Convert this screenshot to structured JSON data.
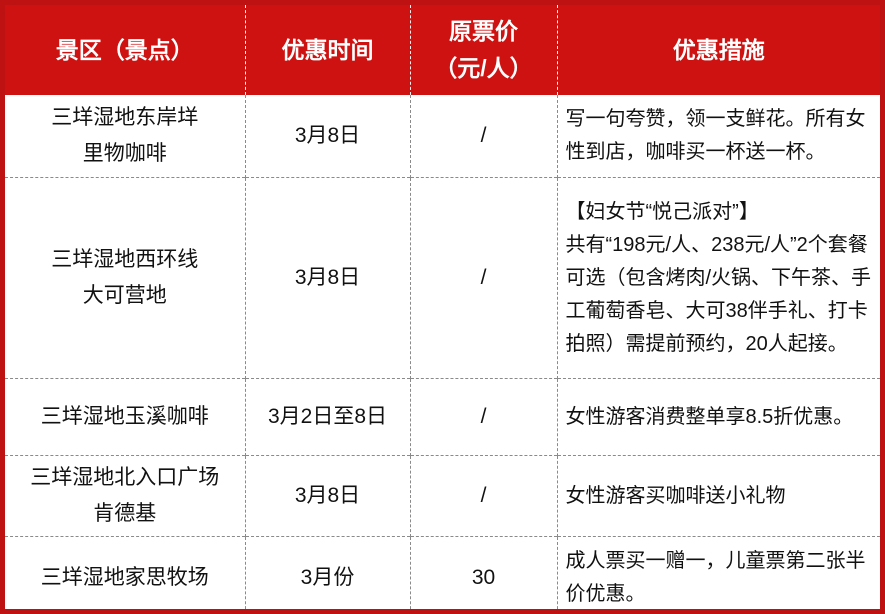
{
  "colors": {
    "header_bg": "#ce1212",
    "outer_border": "#be1111",
    "grid_line": "#8a8a8a",
    "header_text": "#ffffff",
    "body_text": "#111111"
  },
  "table": {
    "headers": {
      "spot": "景区（景点）",
      "time": "优惠时间",
      "price": "原票价\n（元/人）",
      "measure": "优惠措施"
    },
    "rows": [
      {
        "spot": "三垟湿地东岸垟\n里物咖啡",
        "time": "3月8日",
        "price": "/",
        "measure": "写一句夸赞，领一支鲜花。所有女性到店，咖啡买一杯送一杯。"
      },
      {
        "spot": "三垟湿地西环线\n大可营地",
        "time": "3月8日",
        "price": "/",
        "measure": "【妇女节“悦己派对”】\n共有“198元/人、238元/人”2个套餐可选（包含烤肉/火锅、下午茶、手工葡萄香皂、大可38伴手礼、打卡拍照）需提前预约，20人起接。"
      },
      {
        "spot": "三垟湿地玉溪咖啡",
        "time": "3月2日至8日",
        "price": "/",
        "measure": "女性游客消费整单享8.5折优惠。"
      },
      {
        "spot": "三垟湿地北入口广场\n肯德基",
        "time": "3月8日",
        "price": "/",
        "measure": "女性游客买咖啡送小礼物"
      },
      {
        "spot": "三垟湿地家思牧场",
        "time": "3月份",
        "price": "30",
        "measure": "成人票买一赠一，儿童票第二张半价优惠。"
      }
    ]
  }
}
